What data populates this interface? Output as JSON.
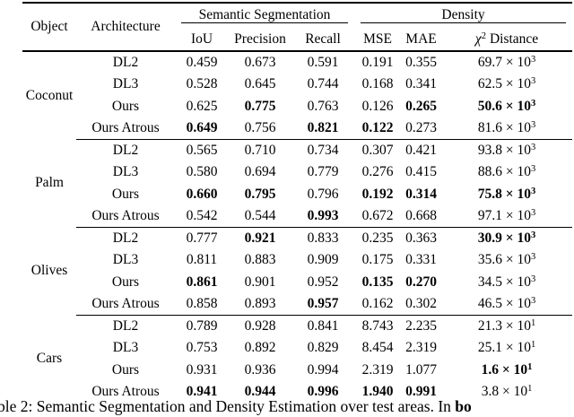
{
  "colors": {
    "background": "#ffffff",
    "text": "#000000",
    "rule": "#000000"
  },
  "header": {
    "object": "Object",
    "architecture": "Architecture",
    "seg_group": "Semantic Segmentation",
    "den_group": "Density",
    "cols": [
      "IoU",
      "Precision",
      "Recall",
      "MSE",
      "MAE"
    ],
    "chi_base": "χ",
    "chi_sup": "2",
    "chi_rest": "Distance"
  },
  "groups": [
    {
      "object": "Coconut",
      "rows": [
        {
          "arch": "DL2",
          "cells": [
            {
              "t": "0.459",
              "b": false
            },
            {
              "t": "0.673",
              "b": false
            },
            {
              "t": "0.591",
              "b": false
            },
            {
              "t": "0.191",
              "b": false
            },
            {
              "t": "0.355",
              "b": false
            },
            {
              "t": "69.7 × 10",
              "sup": "3",
              "b": false
            }
          ]
        },
        {
          "arch": "DL3",
          "cells": [
            {
              "t": "0.528",
              "b": false
            },
            {
              "t": "0.645",
              "b": false
            },
            {
              "t": "0.744",
              "b": false
            },
            {
              "t": "0.168",
              "b": false
            },
            {
              "t": "0.341",
              "b": false
            },
            {
              "t": "62.5 × 10",
              "sup": "3",
              "b": false
            }
          ]
        },
        {
          "arch": "Ours",
          "cells": [
            {
              "t": "0.625",
              "b": false
            },
            {
              "t": "0.775",
              "b": true
            },
            {
              "t": "0.763",
              "b": false
            },
            {
              "t": "0.126",
              "b": false
            },
            {
              "t": "0.265",
              "b": true
            },
            {
              "t": "50.6 × 10",
              "sup": "3",
              "b": true
            }
          ]
        },
        {
          "arch": "Ours Atrous",
          "cells": [
            {
              "t": "0.649",
              "b": true
            },
            {
              "t": "0.756",
              "b": false
            },
            {
              "t": "0.821",
              "b": true
            },
            {
              "t": "0.122",
              "b": true
            },
            {
              "t": "0.273",
              "b": false
            },
            {
              "t": "81.6 × 10",
              "sup": "3",
              "b": false
            }
          ]
        }
      ]
    },
    {
      "object": "Palm",
      "rows": [
        {
          "arch": "DL2",
          "cells": [
            {
              "t": "0.565",
              "b": false
            },
            {
              "t": "0.710",
              "b": false
            },
            {
              "t": "0.734",
              "b": false
            },
            {
              "t": "0.307",
              "b": false
            },
            {
              "t": "0.421",
              "b": false
            },
            {
              "t": "93.8 × 10",
              "sup": "3",
              "b": false
            }
          ]
        },
        {
          "arch": "DL3",
          "cells": [
            {
              "t": "0.580",
              "b": false
            },
            {
              "t": "0.694",
              "b": false
            },
            {
              "t": "0.779",
              "b": false
            },
            {
              "t": "0.276",
              "b": false
            },
            {
              "t": "0.415",
              "b": false
            },
            {
              "t": "88.6 × 10",
              "sup": "3",
              "b": false
            }
          ]
        },
        {
          "arch": "Ours",
          "cells": [
            {
              "t": "0.660",
              "b": true
            },
            {
              "t": "0.795",
              "b": true
            },
            {
              "t": "0.796",
              "b": false
            },
            {
              "t": "0.192",
              "b": true
            },
            {
              "t": "0.314",
              "b": true
            },
            {
              "t": "75.8 × 10",
              "sup": "3",
              "b": true
            }
          ]
        },
        {
          "arch": "Ours Atrous",
          "cells": [
            {
              "t": "0.542",
              "b": false
            },
            {
              "t": "0.544",
              "b": false
            },
            {
              "t": "0.993",
              "b": true
            },
            {
              "t": "0.672",
              "b": false
            },
            {
              "t": "0.668",
              "b": false
            },
            {
              "t": "97.1 × 10",
              "sup": "3",
              "b": false
            }
          ]
        }
      ]
    },
    {
      "object": "Olives",
      "rows": [
        {
          "arch": "DL2",
          "cells": [
            {
              "t": "0.777",
              "b": false
            },
            {
              "t": "0.921",
              "b": true
            },
            {
              "t": "0.833",
              "b": false
            },
            {
              "t": "0.235",
              "b": false
            },
            {
              "t": "0.363",
              "b": false
            },
            {
              "t": "30.9 × 10",
              "sup": "3",
              "b": true
            }
          ]
        },
        {
          "arch": "DL3",
          "cells": [
            {
              "t": "0.811",
              "b": false
            },
            {
              "t": "0.883",
              "b": false
            },
            {
              "t": "0.909",
              "b": false
            },
            {
              "t": "0.175",
              "b": false
            },
            {
              "t": "0.331",
              "b": false
            },
            {
              "t": "35.6 × 10",
              "sup": "3",
              "b": false
            }
          ]
        },
        {
          "arch": "Ours",
          "cells": [
            {
              "t": "0.861",
              "b": true
            },
            {
              "t": "0.901",
              "b": false
            },
            {
              "t": "0.952",
              "b": false
            },
            {
              "t": "0.135",
              "b": true
            },
            {
              "t": "0.270",
              "b": true
            },
            {
              "t": "34.5 × 10",
              "sup": "3",
              "b": false
            }
          ]
        },
        {
          "arch": "Ours Atrous",
          "cells": [
            {
              "t": "0.858",
              "b": false
            },
            {
              "t": "0.893",
              "b": false
            },
            {
              "t": "0.957",
              "b": true
            },
            {
              "t": "0.162",
              "b": false
            },
            {
              "t": "0.302",
              "b": false
            },
            {
              "t": "46.5 × 10",
              "sup": "3",
              "b": false
            }
          ]
        }
      ]
    },
    {
      "object": "Cars",
      "rows": [
        {
          "arch": "DL2",
          "cells": [
            {
              "t": "0.789",
              "b": false
            },
            {
              "t": "0.928",
              "b": false
            },
            {
              "t": "0.841",
              "b": false
            },
            {
              "t": "8.743",
              "b": false
            },
            {
              "t": "2.235",
              "b": false
            },
            {
              "t": "21.3 × 10",
              "sup": "1",
              "b": false
            }
          ]
        },
        {
          "arch": "DL3",
          "cells": [
            {
              "t": "0.753",
              "b": false
            },
            {
              "t": "0.892",
              "b": false
            },
            {
              "t": "0.829",
              "b": false
            },
            {
              "t": "8.454",
              "b": false
            },
            {
              "t": "2.319",
              "b": false
            },
            {
              "t": "25.1 × 10",
              "sup": "1",
              "b": false
            }
          ]
        },
        {
          "arch": "Ours",
          "cells": [
            {
              "t": "0.931",
              "b": false
            },
            {
              "t": "0.936",
              "b": false
            },
            {
              "t": "0.994",
              "b": false
            },
            {
              "t": "2.319",
              "b": false
            },
            {
              "t": "1.077",
              "b": false
            },
            {
              "t": "1.6 × 10",
              "sup": "1",
              "b": true
            }
          ]
        },
        {
          "arch": "Ours Atrous",
          "cells": [
            {
              "t": "0.941",
              "b": true
            },
            {
              "t": "0.944",
              "b": true
            },
            {
              "t": "0.996",
              "b": true
            },
            {
              "t": "1.940",
              "b": true
            },
            {
              "t": "0.991",
              "b": true
            },
            {
              "t": "3.8 × 10",
              "sup": "1",
              "b": false
            }
          ]
        }
      ]
    }
  ],
  "caption": {
    "pre": "ble 2: Semantic Segmentation and Density Estimation over test areas. In ",
    "bold": "bo"
  }
}
